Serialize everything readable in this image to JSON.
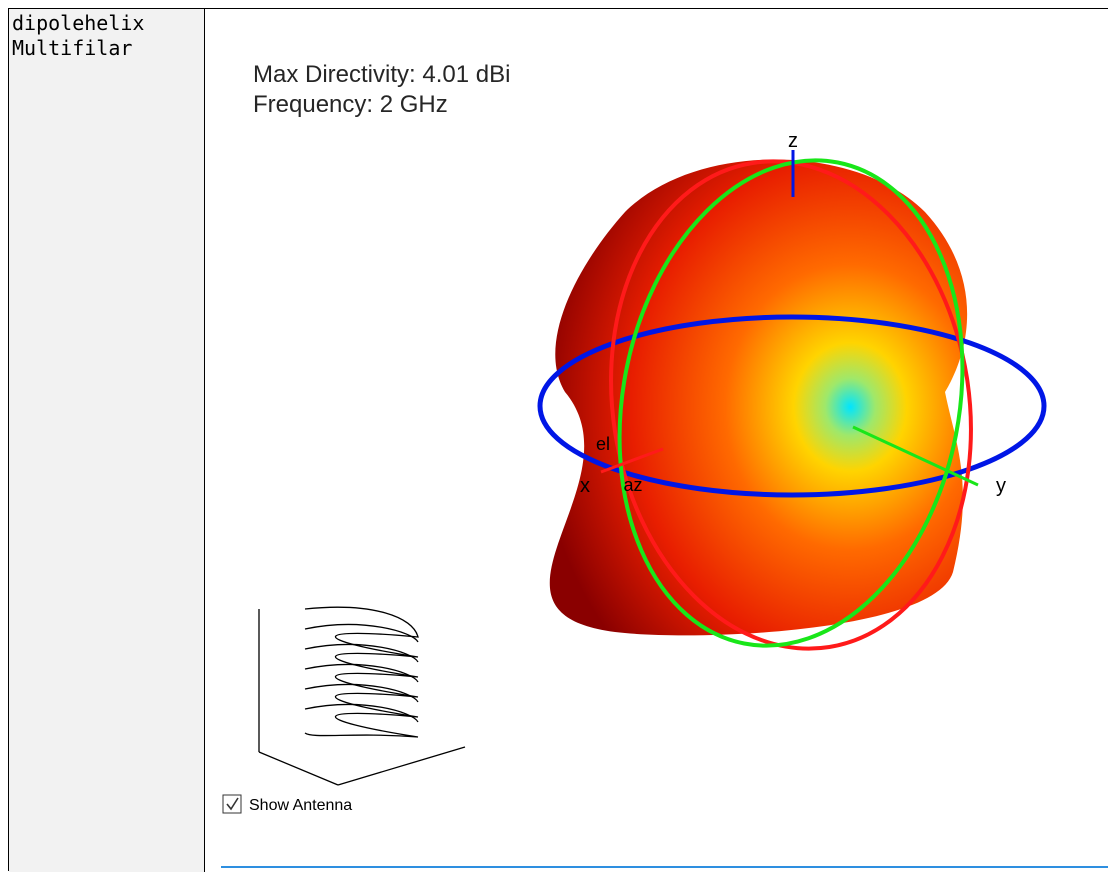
{
  "label_cell": {
    "lines": [
      "dipolehelix",
      "Multifilar"
    ]
  },
  "plot": {
    "title_lines": [
      "Max Directivity: 4.01 dBi",
      "Frequency: 2 GHz"
    ],
    "axis_labels": {
      "z": "z",
      "x": "x",
      "y": "y",
      "el": "el",
      "az": "az"
    }
  },
  "checkbox": {
    "label": "Show Antenna",
    "checked": true
  }
}
